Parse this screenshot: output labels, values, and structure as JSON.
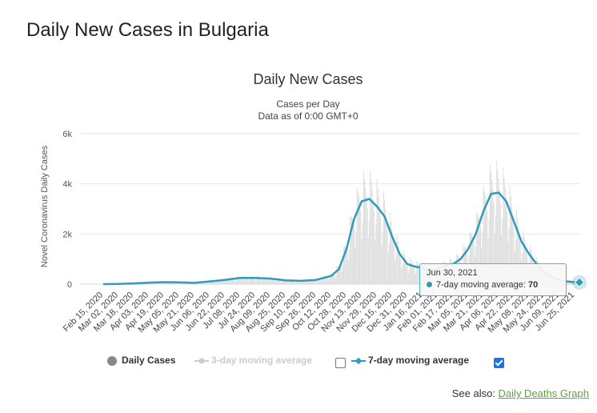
{
  "page": {
    "title": "Daily New Cases in Bulgaria"
  },
  "chart_data": {
    "type": "line",
    "title": "Daily New Cases",
    "subtitle": "Cases per Day",
    "subtitle2": "Data as of 0:00 GMT+0",
    "ylabel": "Novel Coronavirus Daily Cases",
    "xlabel": "",
    "ylim": [
      0,
      6000
    ],
    "y_ticks": [
      0,
      2000,
      4000,
      6000
    ],
    "y_tick_labels": [
      "0",
      "2k",
      "4k",
      "6k"
    ],
    "x_tick_labels": [
      "Feb 15, 2020",
      "Mar 02, 2020",
      "Mar 18, 2020",
      "Apr 03, 2020",
      "Apr 19, 2020",
      "May 05, 2020",
      "May 21, 2020",
      "Jun 06, 2020",
      "Jun 22, 2020",
      "Jul 08, 2020",
      "Jul 24, 2020",
      "Aug 09, 2020",
      "Aug 25, 2020",
      "Sep 10, 2020",
      "Sep 26, 2020",
      "Oct 12, 2020",
      "Oct 28, 2020",
      "Nov 13, 2020",
      "Nov 29, 2020",
      "Dec 15, 2020",
      "Dec 31, 2020",
      "Jan 16, 2021",
      "Feb 01, 2021",
      "Feb 17, 2021",
      "Mar 05, 2021",
      "Mar 21, 2021",
      "Apr 06, 2021",
      "Apr 22, 2021",
      "May 08, 2021",
      "May 24, 2021",
      "Jun 09, 2021",
      "Jun 25, 2021"
    ],
    "grid": true,
    "series": [
      {
        "name": "7-day moving average",
        "color": "#2f9bb9",
        "x": [
          "Feb 15, 2020",
          "Mar 02, 2020",
          "Mar 18, 2020",
          "Apr 03, 2020",
          "Apr 19, 2020",
          "May 05, 2020",
          "May 21, 2020",
          "Jun 06, 2020",
          "Jun 22, 2020",
          "Jul 08, 2020",
          "Jul 24, 2020",
          "Aug 09, 2020",
          "Aug 25, 2020",
          "Sep 10, 2020",
          "Sep 26, 2020",
          "Oct 12, 2020",
          "Oct 20, 2020",
          "Oct 28, 2020",
          "Nov 05, 2020",
          "Nov 13, 2020",
          "Nov 21, 2020",
          "Nov 29, 2020",
          "Dec 07, 2020",
          "Dec 15, 2020",
          "Dec 23, 2020",
          "Dec 31, 2020",
          "Jan 08, 2021",
          "Jan 16, 2021",
          "Jan 24, 2021",
          "Feb 01, 2021",
          "Feb 09, 2021",
          "Feb 17, 2021",
          "Feb 25, 2021",
          "Mar 05, 2021",
          "Mar 13, 2021",
          "Mar 21, 2021",
          "Mar 29, 2021",
          "Apr 06, 2021",
          "Apr 14, 2021",
          "Apr 22, 2021",
          "Apr 30, 2021",
          "May 08, 2021",
          "May 16, 2021",
          "May 24, 2021",
          "Jun 01, 2021",
          "Jun 09, 2021",
          "Jun 17, 2021",
          "Jun 25, 2021",
          "Jun 30, 2021"
        ],
        "values": [
          0,
          5,
          30,
          60,
          80,
          70,
          50,
          110,
          170,
          250,
          250,
          220,
          150,
          130,
          170,
          330,
          600,
          1400,
          2600,
          3300,
          3400,
          3100,
          2700,
          1900,
          1200,
          800,
          700,
          650,
          500,
          620,
          720,
          800,
          1000,
          1400,
          2000,
          2900,
          3600,
          3650,
          3300,
          2500,
          1700,
          1200,
          800,
          450,
          280,
          170,
          110,
          80,
          70
        ]
      }
    ],
    "bars_series": {
      "name": "Daily Cases",
      "color": "#dddddd",
      "note_hidden": true
    },
    "legend": {
      "placement": "bottom",
      "items": [
        {
          "label": "Daily Cases",
          "color": "#888888",
          "active": true
        },
        {
          "label": "3-day moving average",
          "color": "#cccccc",
          "active": false
        },
        {
          "label": "7-day moving average",
          "color": "#2f9bb9",
          "active": true
        }
      ]
    },
    "tooltip": {
      "date": "Jun 30, 2021",
      "series_label": "7-day moving average: ",
      "value": "70"
    }
  },
  "see_also": {
    "prefix": "See also: ",
    "link": "Daily Deaths Graph"
  }
}
